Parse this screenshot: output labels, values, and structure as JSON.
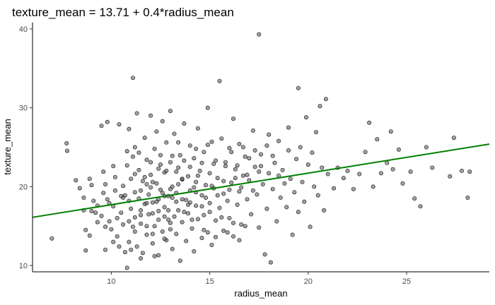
{
  "chart_data": {
    "type": "scatter",
    "title": "texture_mean = 13.71 + 0.4*radius_mean",
    "xlabel": "radius_mean",
    "ylabel": "texture_mean",
    "xlim": [
      6.0,
      29.2
    ],
    "ylim": [
      9.2,
      40.8
    ],
    "xticks": [
      10,
      15,
      20,
      25
    ],
    "yticks": [
      10,
      20,
      30,
      40
    ],
    "grid": false,
    "legend": "none",
    "colors": {
      "points": "#555555",
      "point_edge": "#111111",
      "fit_line": "#008000",
      "axis": "#000000",
      "tick_text": "#4d4d4d"
    },
    "point_opacity": 0.55,
    "fit_line": {
      "intercept": 13.71,
      "slope": 0.4
    },
    "series": [
      {
        "points": [
          [
            6.98,
            13.43
          ],
          [
            7.76,
            24.54
          ],
          [
            7.73,
            25.49
          ],
          [
            8.2,
            20.8
          ],
          [
            8.6,
            18.6
          ],
          [
            8.6,
            17.0
          ],
          [
            8.7,
            14.5
          ],
          [
            8.7,
            11.9
          ],
          [
            8.9,
            13.8
          ],
          [
            9.0,
            16.9
          ],
          [
            9.0,
            20.2
          ],
          [
            9.1,
            18.2
          ],
          [
            9.3,
            15.5
          ],
          [
            9.5,
            27.7
          ],
          [
            9.5,
            16.3
          ],
          [
            9.6,
            21.9
          ],
          [
            9.7,
            20.3
          ],
          [
            9.7,
            12.0
          ],
          [
            9.8,
            28.2
          ],
          [
            9.8,
            18.4
          ],
          [
            9.9,
            15.6
          ],
          [
            10.0,
            14.6
          ],
          [
            10.1,
            22.6
          ],
          [
            10.1,
            17.5
          ],
          [
            10.2,
            19.5
          ],
          [
            10.3,
            13.7
          ],
          [
            10.4,
            27.9
          ],
          [
            10.5,
            16.7
          ],
          [
            10.6,
            20.1
          ],
          [
            10.6,
            15.2
          ],
          [
            10.7,
            18.9
          ],
          [
            10.8,
            24.5
          ],
          [
            10.8,
            9.7
          ],
          [
            10.9,
            13.0
          ],
          [
            10.9,
            27.3
          ],
          [
            11.0,
            21.0
          ],
          [
            11.0,
            17.2
          ],
          [
            11.1,
            14.9
          ],
          [
            11.1,
            33.8
          ],
          [
            11.2,
            25.0
          ],
          [
            11.2,
            19.3
          ],
          [
            11.2,
            16.1
          ],
          [
            11.3,
            29.3
          ],
          [
            11.3,
            12.4
          ],
          [
            11.4,
            22.1
          ],
          [
            11.4,
            18.5
          ],
          [
            11.5,
            10.9
          ],
          [
            11.5,
            15.3
          ],
          [
            11.6,
            20.7
          ],
          [
            11.7,
            26.2
          ],
          [
            11.7,
            17.8
          ],
          [
            11.8,
            13.9
          ],
          [
            11.8,
            23.4
          ],
          [
            11.9,
            19.0
          ],
          [
            11.9,
            16.5
          ],
          [
            12.0,
            29.0
          ],
          [
            12.0,
            21.5
          ],
          [
            12.1,
            12.8
          ],
          [
            12.1,
            18.0
          ],
          [
            12.2,
            24.8
          ],
          [
            12.2,
            15.0
          ],
          [
            12.3,
            20.4
          ],
          [
            12.3,
            27.0
          ],
          [
            12.4,
            16.9
          ],
          [
            12.4,
            11.3
          ],
          [
            12.5,
            22.8
          ],
          [
            12.5,
            19.6
          ],
          [
            12.6,
            14.3
          ],
          [
            12.6,
            28.3
          ],
          [
            12.7,
            17.4
          ],
          [
            12.7,
            21.8
          ],
          [
            12.8,
            13.2
          ],
          [
            12.8,
            25.6
          ],
          [
            12.9,
            18.8
          ],
          [
            12.9,
            15.8
          ],
          [
            13.0,
            23.1
          ],
          [
            13.0,
            29.6
          ],
          [
            13.1,
            20.0
          ],
          [
            13.1,
            12.1
          ],
          [
            13.2,
            16.2
          ],
          [
            13.2,
            26.7
          ],
          [
            13.3,
            19.2
          ],
          [
            13.3,
            14.0
          ],
          [
            13.4,
            22.4
          ],
          [
            13.4,
            17.0
          ],
          [
            13.5,
            24.0
          ],
          [
            13.5,
            10.6
          ],
          [
            13.6,
            20.9
          ],
          [
            13.6,
            15.5
          ],
          [
            13.7,
            28.0
          ],
          [
            13.8,
            18.3
          ],
          [
            13.8,
            13.1
          ],
          [
            13.9,
            21.3
          ],
          [
            13.9,
            16.6
          ],
          [
            14.0,
            25.2
          ],
          [
            14.0,
            19.5
          ],
          [
            14.1,
            14.7
          ],
          [
            14.2,
            23.6
          ],
          [
            14.2,
            11.8
          ],
          [
            14.3,
            17.6
          ],
          [
            14.3,
            20.6
          ],
          [
            14.4,
            27.4
          ],
          [
            14.4,
            15.9
          ],
          [
            14.5,
            22.0
          ],
          [
            14.6,
            13.5
          ],
          [
            14.6,
            18.9
          ],
          [
            14.7,
            24.4
          ],
          [
            14.7,
            16.4
          ],
          [
            14.8,
            20.2
          ],
          [
            14.9,
            30.0
          ],
          [
            14.9,
            14.2
          ],
          [
            15.0,
            21.7
          ],
          [
            15.0,
            17.9
          ],
          [
            15.1,
            25.7
          ],
          [
            15.1,
            12.6
          ],
          [
            15.2,
            19.8
          ],
          [
            15.3,
            23.3
          ],
          [
            15.3,
            15.7
          ],
          [
            15.4,
            21.1
          ],
          [
            15.5,
            33.4
          ],
          [
            15.5,
            17.3
          ],
          [
            15.6,
            26.1
          ],
          [
            15.7,
            19.1
          ],
          [
            15.7,
            14.4
          ],
          [
            15.8,
            22.6
          ],
          [
            15.9,
            18.2
          ],
          [
            16.0,
            24.9
          ],
          [
            16.0,
            16.0
          ],
          [
            16.1,
            20.5
          ],
          [
            16.2,
            28.6
          ],
          [
            16.2,
            13.7
          ],
          [
            16.3,
            22.2
          ],
          [
            16.4,
            17.7
          ],
          [
            16.5,
            25.4
          ],
          [
            16.5,
            19.4
          ],
          [
            16.6,
            15.2
          ],
          [
            16.7,
            21.4
          ],
          [
            16.8,
            23.8
          ],
          [
            16.9,
            18.4
          ],
          [
            17.0,
            20.8
          ],
          [
            17.1,
            16.5
          ],
          [
            17.2,
            27.1
          ],
          [
            17.3,
            22.5
          ],
          [
            17.4,
            19.0
          ],
          [
            17.5,
            39.3
          ],
          [
            17.5,
            14.8
          ],
          [
            17.6,
            24.1
          ],
          [
            17.7,
            20.3
          ],
          [
            17.8,
            11.4
          ],
          [
            17.9,
            17.2
          ],
          [
            18.0,
            26.6
          ],
          [
            18.0,
            21.7
          ],
          [
            18.1,
            10.4
          ],
          [
            18.2,
            19.7
          ],
          [
            18.3,
            23.0
          ],
          [
            18.4,
            15.6
          ],
          [
            18.5,
            25.8
          ],
          [
            18.6,
            18.6
          ],
          [
            18.7,
            22.1
          ],
          [
            18.8,
            20.4
          ],
          [
            18.9,
            17.4
          ],
          [
            19.0,
            27.5
          ],
          [
            19.0,
            24.6
          ],
          [
            19.1,
            21.0
          ],
          [
            19.2,
            13.9
          ],
          [
            19.3,
            19.3
          ],
          [
            19.4,
            23.5
          ],
          [
            19.5,
            32.5
          ],
          [
            19.5,
            16.8
          ],
          [
            19.6,
            25.0
          ],
          [
            19.7,
            20.6
          ],
          [
            19.8,
            18.1
          ],
          [
            19.9,
            28.8
          ],
          [
            20.0,
            22.8
          ],
          [
            20.1,
            14.9
          ],
          [
            20.2,
            24.3
          ],
          [
            20.3,
            20.0
          ],
          [
            20.4,
            26.9
          ],
          [
            20.5,
            18.9
          ],
          [
            20.6,
            30.2
          ],
          [
            20.7,
            22.4
          ],
          [
            20.8,
            17.0
          ],
          [
            20.9,
            31.1
          ],
          [
            21.0,
            21.6
          ],
          [
            21.3,
            19.8
          ],
          [
            21.5,
            22.4
          ],
          [
            21.8,
            21.1
          ],
          [
            22.0,
            22.0
          ],
          [
            22.3,
            19.7
          ],
          [
            22.6,
            21.6
          ],
          [
            22.9,
            24.4
          ],
          [
            23.1,
            28.1
          ],
          [
            23.3,
            20.0
          ],
          [
            23.5,
            26.0
          ],
          [
            23.7,
            21.7
          ],
          [
            24.0,
            23.0
          ],
          [
            24.2,
            27.0
          ],
          [
            24.3,
            22.2
          ],
          [
            24.6,
            24.7
          ],
          [
            24.8,
            20.4
          ],
          [
            25.2,
            21.9
          ],
          [
            25.4,
            18.5
          ],
          [
            25.7,
            17.5
          ],
          [
            26.0,
            25.0
          ],
          [
            26.3,
            22.4
          ],
          [
            27.2,
            21.3
          ],
          [
            27.4,
            26.2
          ],
          [
            27.8,
            22.0
          ],
          [
            28.1,
            18.6
          ],
          [
            28.2,
            21.9
          ],
          [
            12.0,
            19.9
          ],
          [
            12.3,
            18.1
          ],
          [
            12.6,
            19.2
          ],
          [
            12.9,
            17.0
          ],
          [
            13.1,
            18.6
          ],
          [
            13.4,
            20.3
          ],
          [
            13.7,
            16.8
          ],
          [
            14.0,
            18.0
          ],
          [
            14.3,
            19.3
          ],
          [
            14.6,
            17.5
          ],
          [
            11.5,
            19.5
          ],
          [
            11.8,
            17.9
          ],
          [
            12.1,
            20.6
          ],
          [
            12.4,
            18.4
          ],
          [
            12.7,
            16.2
          ],
          [
            13.0,
            19.7
          ],
          [
            13.3,
            18.1
          ],
          [
            13.6,
            21.0
          ],
          [
            13.9,
            17.7
          ],
          [
            14.2,
            19.9
          ],
          [
            10.9,
            18.2
          ],
          [
            11.2,
            21.6
          ],
          [
            11.5,
            17.0
          ],
          [
            11.8,
            20.3
          ],
          [
            12.1,
            16.6
          ],
          [
            12.4,
            22.3
          ],
          [
            12.7,
            18.8
          ],
          [
            13.0,
            15.4
          ],
          [
            13.3,
            21.9
          ],
          [
            13.6,
            18.4
          ],
          [
            14.8,
            18.6
          ],
          [
            15.1,
            20.1
          ],
          [
            15.4,
            18.9
          ],
          [
            15.7,
            20.7
          ],
          [
            16.0,
            19.6
          ],
          [
            16.3,
            21.1
          ],
          [
            16.6,
            19.9
          ],
          [
            16.9,
            21.5
          ],
          [
            17.2,
            19.5
          ],
          [
            17.5,
            21.9
          ],
          [
            14.1,
            15.8
          ],
          [
            14.4,
            21.4
          ],
          [
            14.7,
            14.5
          ],
          [
            15.0,
            16.8
          ],
          [
            15.3,
            13.6
          ],
          [
            15.6,
            16.1
          ],
          [
            15.9,
            14.2
          ],
          [
            16.2,
            15.4
          ],
          [
            16.5,
            13.2
          ],
          [
            16.8,
            15.0
          ],
          [
            10.3,
            16.0
          ],
          [
            10.6,
            18.6
          ],
          [
            10.9,
            15.6
          ],
          [
            11.2,
            14.3
          ],
          [
            11.5,
            16.4
          ],
          [
            11.8,
            15.0
          ],
          [
            12.1,
            14.0
          ],
          [
            12.4,
            15.8
          ],
          [
            12.7,
            13.4
          ],
          [
            13.0,
            14.6
          ],
          [
            9.3,
            17.6
          ],
          [
            9.6,
            19.2
          ],
          [
            9.9,
            17.9
          ],
          [
            10.2,
            21.2
          ],
          [
            10.5,
            18.8
          ],
          [
            10.8,
            22.7
          ],
          [
            11.1,
            23.8
          ],
          [
            11.4,
            24.3
          ],
          [
            11.7,
            21.2
          ],
          [
            12.0,
            23.1
          ],
          [
            12.5,
            24.0
          ],
          [
            12.8,
            22.0
          ],
          [
            13.1,
            23.9
          ],
          [
            13.4,
            25.6
          ],
          [
            13.7,
            23.3
          ],
          [
            14.0,
            22.5
          ],
          [
            14.3,
            24.8
          ],
          [
            14.6,
            23.0
          ],
          [
            14.9,
            25.3
          ],
          [
            15.2,
            22.9
          ],
          [
            8.4,
            19.8
          ],
          [
            8.9,
            21.0
          ],
          [
            9.2,
            16.7
          ],
          [
            9.7,
            14.9
          ],
          [
            10.1,
            13.0
          ],
          [
            10.4,
            12.4
          ],
          [
            10.7,
            11.7
          ],
          [
            11.0,
            12.0
          ],
          [
            11.6,
            11.6
          ],
          [
            12.2,
            11.2
          ],
          [
            15.8,
            23.1
          ],
          [
            16.1,
            24.4
          ],
          [
            16.4,
            22.7
          ],
          [
            16.7,
            25.0
          ],
          [
            17.0,
            23.6
          ],
          [
            17.3,
            24.6
          ],
          [
            17.6,
            22.6
          ],
          [
            17.9,
            25.2
          ],
          [
            18.2,
            23.9
          ],
          [
            18.5,
            21.4
          ]
        ]
      }
    ]
  }
}
